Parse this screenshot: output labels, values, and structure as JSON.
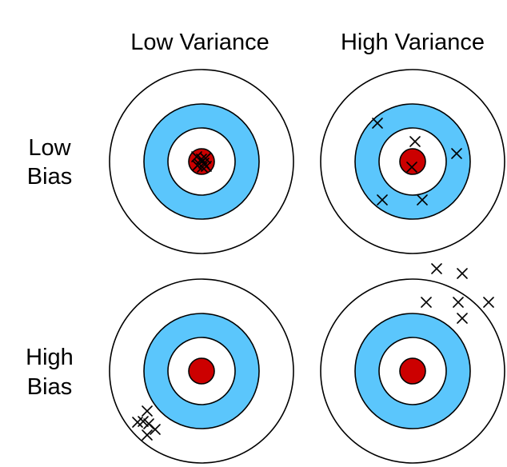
{
  "columns": [
    {
      "label": "Low Variance"
    },
    {
      "label": "High Variance"
    }
  ],
  "rows": [
    {
      "label_line1": "Low",
      "label_line2": "Bias"
    },
    {
      "label_line1": "High",
      "label_line2": "Bias"
    }
  ],
  "colors": {
    "ring_fill": "#5bc6fc",
    "bullseye_fill": "#cc0000",
    "outline": "#000000",
    "background": "#ffffff",
    "marker": "#000000"
  },
  "marker_shape": "x-cross"
}
